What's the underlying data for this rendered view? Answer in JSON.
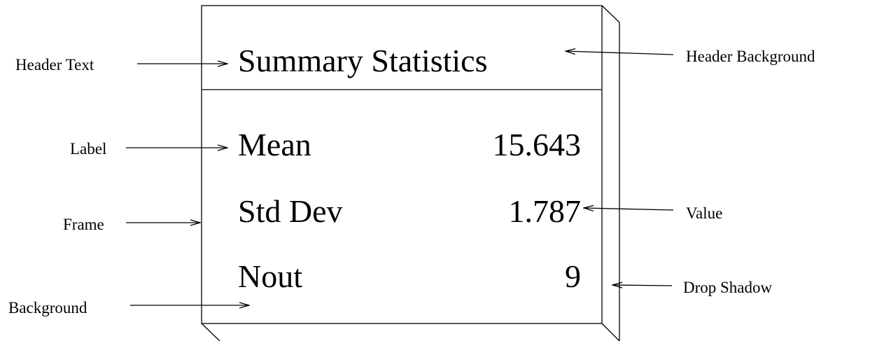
{
  "header": {
    "title": "Summary Statistics"
  },
  "rows": [
    [
      "Mean",
      "15.643"
    ],
    [
      "Std Dev",
      "1.787"
    ],
    [
      "Nout",
      "9"
    ]
  ],
  "annotations": {
    "header_text": "Header Text",
    "header_background": "Header Background",
    "label": "Label",
    "frame": "Frame",
    "value": "Value",
    "drop_shadow": "Drop Shadow",
    "background": "Background"
  }
}
